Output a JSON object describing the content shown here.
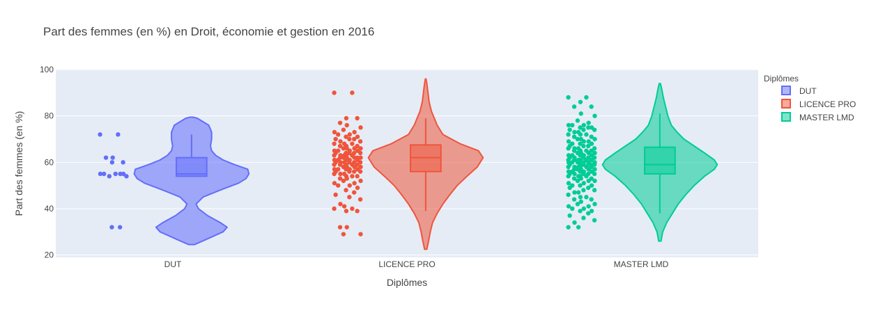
{
  "chart_data": {
    "type": "violin",
    "title": "Part des femmes (en %) en Droit, économie et gestion en 2016",
    "xlabel": "Diplômes",
    "ylabel": "Part des femmes (en %)",
    "categories": [
      "DUT",
      "LICENCE PRO",
      "MASTER LMD"
    ],
    "ylim": [
      19,
      100
    ],
    "yticks": [
      20,
      40,
      60,
      80,
      100
    ],
    "grid": true,
    "legend": {
      "title": "Diplômes",
      "position": "top-right"
    },
    "series": [
      {
        "name": "DUT",
        "color": "#636efa",
        "box": {
          "min": 54,
          "q1": 54,
          "median": 55,
          "q3": 62,
          "max": 72
        },
        "violin": {
          "min": 24.5,
          "max": 79.5,
          "density": [
            [
              24.5,
              0.05
            ],
            [
              27,
              0.28
            ],
            [
              30,
              0.55
            ],
            [
              32,
              0.62
            ],
            [
              34,
              0.5
            ],
            [
              37,
              0.28
            ],
            [
              40,
              0.12
            ],
            [
              42,
              0.08
            ],
            [
              45,
              0.2
            ],
            [
              48,
              0.5
            ],
            [
              51,
              0.82
            ],
            [
              53,
              0.95
            ],
            [
              55,
              1.0
            ],
            [
              57,
              0.98
            ],
            [
              59,
              0.75
            ],
            [
              61,
              0.55
            ],
            [
              63,
              0.42
            ],
            [
              65,
              0.35
            ],
            [
              67,
              0.33
            ],
            [
              70,
              0.35
            ],
            [
              73,
              0.35
            ],
            [
              76,
              0.3
            ],
            [
              79,
              0.1
            ],
            [
              79.5,
              0.02
            ]
          ]
        },
        "points": [
          72,
          72,
          60,
          60,
          62,
          62,
          54,
          54,
          55,
          55,
          55,
          55,
          55,
          32,
          32
        ]
      },
      {
        "name": "LICENCE PRO",
        "color": "#ef553b",
        "box": {
          "min": 39,
          "q1": 56,
          "median": 62,
          "q3": 67.5,
          "max": 79
        },
        "violin": {
          "min": 22.5,
          "max": 96,
          "density": [
            [
              22.5,
              0.02
            ],
            [
              26,
              0.05
            ],
            [
              30,
              0.08
            ],
            [
              34,
              0.12
            ],
            [
              38,
              0.2
            ],
            [
              42,
              0.3
            ],
            [
              46,
              0.42
            ],
            [
              50,
              0.55
            ],
            [
              54,
              0.72
            ],
            [
              58,
              0.9
            ],
            [
              62,
              1.0
            ],
            [
              65,
              0.92
            ],
            [
              68,
              0.6
            ],
            [
              72,
              0.3
            ],
            [
              76,
              0.2
            ],
            [
              79,
              0.15
            ],
            [
              82,
              0.1
            ],
            [
              86,
              0.06
            ],
            [
              90,
              0.04
            ],
            [
              94,
              0.02
            ],
            [
              96,
              0.005
            ]
          ]
        },
        "points": [
          90,
          90,
          79,
          79,
          77,
          76,
          75,
          74,
          73,
          73,
          72,
          72,
          71,
          71,
          70,
          70,
          70,
          69,
          69,
          68,
          68,
          68,
          67,
          67,
          67,
          66,
          66,
          66,
          66,
          65,
          65,
          65,
          65,
          64,
          64,
          64,
          64,
          64,
          63,
          63,
          63,
          63,
          63,
          62,
          62,
          62,
          62,
          62,
          62,
          61,
          61,
          61,
          61,
          61,
          60,
          60,
          60,
          60,
          60,
          60,
          59,
          59,
          59,
          59,
          59,
          58,
          58,
          58,
          58,
          57,
          57,
          57,
          57,
          57,
          56,
          56,
          56,
          56,
          55,
          55,
          55,
          54,
          54,
          54,
          53,
          53,
          52,
          52,
          51,
          51,
          50,
          50,
          49,
          48,
          47,
          46,
          45,
          44,
          42,
          41,
          40,
          40,
          39,
          39,
          32,
          32,
          29,
          29
        ]
      },
      {
        "name": "MASTER LMD",
        "color": "#00cc96",
        "box": {
          "min": 38,
          "q1": 55,
          "median": 59,
          "q3": 66.5,
          "max": 81
        },
        "violin": {
          "min": 26,
          "max": 94,
          "density": [
            [
              26,
              0.02
            ],
            [
              30,
              0.05
            ],
            [
              34,
              0.12
            ],
            [
              38,
              0.22
            ],
            [
              42,
              0.32
            ],
            [
              46,
              0.45
            ],
            [
              50,
              0.6
            ],
            [
              54,
              0.78
            ],
            [
              57,
              0.95
            ],
            [
              59,
              1.0
            ],
            [
              61,
              0.95
            ],
            [
              64,
              0.78
            ],
            [
              67,
              0.6
            ],
            [
              70,
              0.42
            ],
            [
              73,
              0.3
            ],
            [
              76,
              0.2
            ],
            [
              80,
              0.14
            ],
            [
              84,
              0.1
            ],
            [
              88,
              0.06
            ],
            [
              92,
              0.03
            ],
            [
              94,
              0.01
            ]
          ]
        },
        "points": [
          88,
          88,
          86,
          84,
          84,
          81,
          80,
          78,
          77,
          76,
          76,
          76,
          75,
          75,
          75,
          74,
          74,
          74,
          73,
          73,
          72,
          72,
          72,
          71,
          71,
          70,
          70,
          70,
          69,
          69,
          69,
          68,
          68,
          68,
          67,
          67,
          67,
          66,
          66,
          66,
          66,
          65,
          65,
          65,
          65,
          64,
          64,
          64,
          64,
          63,
          63,
          63,
          63,
          63,
          62,
          62,
          62,
          62,
          62,
          61,
          61,
          61,
          61,
          61,
          61,
          60,
          60,
          60,
          60,
          60,
          60,
          60,
          59,
          59,
          59,
          59,
          59,
          59,
          58,
          58,
          58,
          58,
          58,
          58,
          57,
          57,
          57,
          57,
          57,
          56,
          56,
          56,
          56,
          56,
          55,
          55,
          55,
          55,
          55,
          54,
          54,
          54,
          54,
          53,
          53,
          53,
          52,
          52,
          52,
          51,
          51,
          50,
          50,
          50,
          49,
          49,
          48,
          48,
          47,
          47,
          46,
          45,
          45,
          44,
          44,
          43,
          42,
          42,
          41,
          41,
          40,
          40,
          39,
          39,
          38,
          37,
          36,
          35,
          34,
          32,
          32
        ]
      }
    ]
  }
}
